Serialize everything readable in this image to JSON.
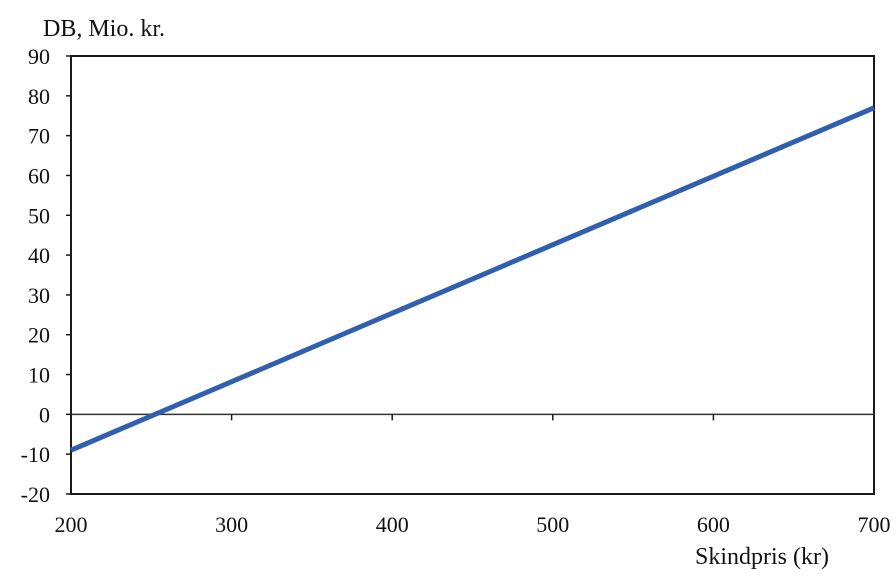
{
  "chart_data": {
    "type": "line",
    "title": "",
    "ylabel": "DB, Mio. kr.",
    "xlabel": "Skindpris (kr)",
    "x": [
      200,
      700
    ],
    "series": [
      {
        "values": [
          -9,
          77
        ],
        "color": "#2f5fae"
      }
    ],
    "xlim": [
      200,
      700
    ],
    "ylim": [
      -20,
      90
    ],
    "xticks": [
      200,
      300,
      400,
      500,
      600,
      700
    ],
    "yticks": [
      90,
      80,
      70,
      60,
      50,
      40,
      30,
      20,
      10,
      0,
      -10,
      -20
    ],
    "reference_line_y": 0,
    "grid": false,
    "legend": "none",
    "colors": {
      "axis": "#1a1a1a",
      "zero_line": "#333333",
      "series": "#2f5fae"
    }
  }
}
